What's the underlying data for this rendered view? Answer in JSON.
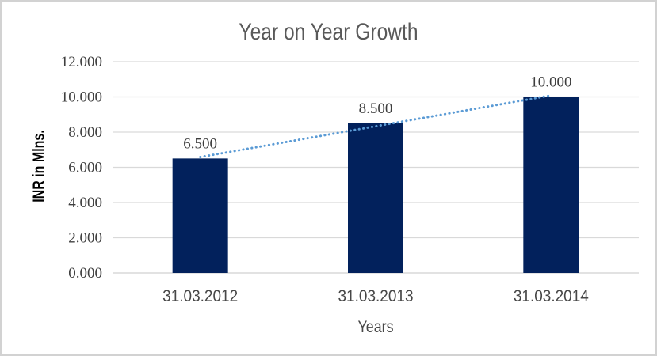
{
  "chart_data": {
    "type": "bar",
    "title": "Year on Year Growth",
    "xlabel": "Years",
    "ylabel": "INR in Mlns.",
    "categories": [
      "31.03.2012",
      "31.03.2013",
      "31.03.2014"
    ],
    "values": [
      6500,
      8500,
      10000
    ],
    "value_labels": [
      "6.500",
      "8.500",
      "10.000"
    ],
    "yticks": [
      {
        "value": 0,
        "label": "0.000"
      },
      {
        "value": 2000,
        "label": "2.000"
      },
      {
        "value": 4000,
        "label": "4.000"
      },
      {
        "value": 6000,
        "label": "6.000"
      },
      {
        "value": 8000,
        "label": "8.000"
      },
      {
        "value": 10000,
        "label": "10.000"
      },
      {
        "value": 12000,
        "label": "12.000"
      }
    ],
    "ylim": [
      0,
      12000
    ],
    "grid": "horizontal",
    "legend": "none",
    "trendline": {
      "type": "linear",
      "style": "dotted",
      "color": "#5b9bd5"
    },
    "colors": {
      "bar": "#02215c",
      "gridline": "#d9d9d9",
      "axis_line": "#d0d0d0",
      "title_text": "#595959",
      "tick_text": "#3f3f3f",
      "data_label_text": "#3d3d3d",
      "y_axis_title_text": "#000000",
      "x_axis_title_text": "#474747",
      "frame_border": "#d2d2d2",
      "background": "#ffffff"
    }
  }
}
